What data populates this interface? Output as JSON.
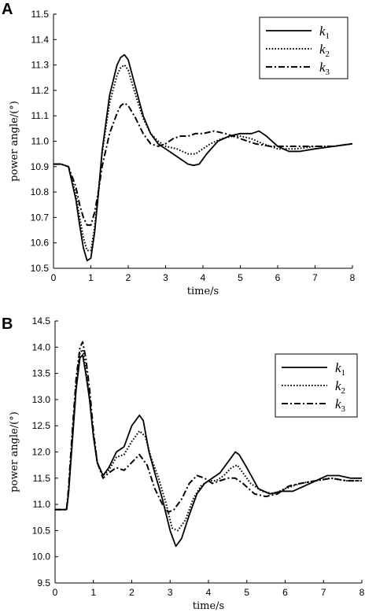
{
  "chart_data": [
    {
      "panel_label": "A",
      "type": "line",
      "xlabel": "time/s",
      "ylabel": "power angle/(°)",
      "xlim": [
        0,
        8
      ],
      "ylim": [
        10.5,
        11.5
      ],
      "x_ticks": [
        0,
        1,
        2,
        3,
        4,
        5,
        6,
        7,
        8
      ],
      "y_ticks": [
        10.5,
        10.6,
        10.7,
        10.8,
        10.9,
        11.0,
        11.1,
        11.2,
        11.3,
        11.4,
        11.5
      ],
      "y_tick_decimals": 1,
      "grid": false,
      "legend_position": "top-right",
      "series": [
        {
          "name": "k",
          "sub": "1",
          "dash": "solid",
          "x": [
            0,
            0.2,
            0.4,
            0.6,
            0.7,
            0.8,
            0.9,
            1.0,
            1.1,
            1.2,
            1.3,
            1.5,
            1.7,
            1.8,
            1.9,
            2.0,
            2.2,
            2.4,
            2.6,
            2.8,
            3.0,
            3.2,
            3.4,
            3.6,
            3.75,
            3.9,
            4.1,
            4.4,
            4.7,
            5.0,
            5.3,
            5.5,
            5.7,
            6.0,
            6.3,
            6.6,
            7.0,
            7.5,
            8.0
          ],
          "y": [
            10.91,
            10.91,
            10.9,
            10.77,
            10.67,
            10.58,
            10.53,
            10.54,
            10.64,
            10.79,
            10.96,
            11.18,
            11.3,
            11.33,
            11.34,
            11.32,
            11.21,
            11.1,
            11.03,
            10.99,
            10.97,
            10.95,
            10.93,
            10.91,
            10.905,
            10.91,
            10.95,
            11.0,
            11.02,
            11.03,
            11.03,
            11.04,
            11.02,
            10.98,
            10.96,
            10.96,
            10.97,
            10.98,
            10.99
          ]
        },
        {
          "name": "k",
          "sub": "2",
          "dash": "dotted",
          "x": [
            0,
            0.2,
            0.4,
            0.6,
            0.7,
            0.8,
            0.9,
            1.0,
            1.1,
            1.2,
            1.3,
            1.5,
            1.7,
            1.8,
            1.9,
            2.0,
            2.2,
            2.4,
            2.6,
            2.8,
            3.0,
            3.3,
            3.6,
            3.8,
            4.0,
            4.2,
            4.5,
            4.8,
            5.0,
            5.3,
            5.6,
            6.0,
            6.5,
            7.0,
            7.5,
            8.0
          ],
          "y": [
            10.91,
            10.91,
            10.9,
            10.79,
            10.7,
            10.62,
            10.57,
            10.57,
            10.66,
            10.8,
            10.95,
            11.15,
            11.26,
            11.29,
            11.3,
            11.28,
            11.18,
            11.09,
            11.03,
            11.0,
            10.98,
            10.97,
            10.95,
            10.95,
            10.97,
            10.99,
            11.01,
            11.02,
            11.02,
            11.01,
            10.99,
            10.97,
            10.97,
            10.98,
            10.98,
            10.99
          ]
        },
        {
          "name": "k",
          "sub": "3",
          "dash": "dashdot",
          "x": [
            0,
            0.2,
            0.4,
            0.6,
            0.7,
            0.8,
            0.9,
            1.0,
            1.1,
            1.2,
            1.3,
            1.5,
            1.7,
            1.8,
            1.9,
            2.0,
            2.2,
            2.4,
            2.6,
            2.8,
            3.0,
            3.2,
            3.4,
            3.6,
            3.8,
            4.0,
            4.3,
            4.6,
            5.0,
            5.4,
            5.8,
            6.2,
            6.6,
            7.0,
            7.5,
            8.0
          ],
          "y": [
            10.91,
            10.91,
            10.9,
            10.82,
            10.75,
            10.7,
            10.67,
            10.67,
            10.72,
            10.8,
            10.9,
            11.03,
            11.11,
            11.14,
            11.15,
            11.14,
            11.09,
            11.03,
            10.99,
            10.98,
            10.99,
            11.01,
            11.02,
            11.02,
            11.03,
            11.03,
            11.04,
            11.03,
            11.01,
            10.99,
            10.98,
            10.98,
            10.98,
            10.98,
            10.98,
            10.99
          ]
        }
      ]
    },
    {
      "panel_label": "B",
      "type": "line",
      "xlabel": "time/s",
      "ylabel": "power angle/(°)",
      "xlim": [
        0,
        8
      ],
      "ylim": [
        9.5,
        14.5
      ],
      "x_ticks": [
        0,
        1,
        2,
        3,
        4,
        5,
        6,
        7,
        8
      ],
      "y_ticks": [
        9.5,
        10.0,
        10.5,
        11.0,
        11.5,
        12.0,
        12.5,
        13.0,
        13.5,
        14.0,
        14.5
      ],
      "y_tick_decimals": 1,
      "grid": false,
      "legend_position": "top-right",
      "series": [
        {
          "name": "k",
          "sub": "1",
          "dash": "solid",
          "x": [
            0,
            0.3,
            0.35,
            0.45,
            0.55,
            0.65,
            0.72,
            0.8,
            0.9,
            1.0,
            1.1,
            1.25,
            1.4,
            1.6,
            1.8,
            2.0,
            2.2,
            2.3,
            2.45,
            2.6,
            2.8,
            3.0,
            3.15,
            3.3,
            3.5,
            3.7,
            3.9,
            4.1,
            4.3,
            4.5,
            4.7,
            4.8,
            5.0,
            5.3,
            5.6,
            5.9,
            6.2,
            6.5,
            6.8,
            7.1,
            7.4,
            7.7,
            8.0
          ],
          "y": [
            10.9,
            10.9,
            11.2,
            12.2,
            13.2,
            13.8,
            13.85,
            13.5,
            13.0,
            12.3,
            11.8,
            11.55,
            11.7,
            12.0,
            12.1,
            12.5,
            12.7,
            12.6,
            12.0,
            11.6,
            11.1,
            10.5,
            10.2,
            10.35,
            10.8,
            11.2,
            11.4,
            11.5,
            11.6,
            11.8,
            12.0,
            11.95,
            11.7,
            11.3,
            11.2,
            11.25,
            11.25,
            11.35,
            11.45,
            11.55,
            11.55,
            11.5,
            11.5
          ]
        },
        {
          "name": "k",
          "sub": "2",
          "dash": "dotted",
          "x": [
            0,
            0.3,
            0.35,
            0.45,
            0.55,
            0.65,
            0.72,
            0.8,
            0.9,
            1.0,
            1.1,
            1.25,
            1.4,
            1.6,
            1.8,
            2.0,
            2.2,
            2.35,
            2.5,
            2.7,
            2.9,
            3.05,
            3.2,
            3.4,
            3.6,
            3.8,
            4.0,
            4.2,
            4.4,
            4.6,
            4.75,
            4.9,
            5.1,
            5.4,
            5.7,
            6.0,
            6.4,
            6.8,
            7.2,
            7.6,
            8.0
          ],
          "y": [
            10.9,
            10.9,
            11.2,
            12.3,
            13.3,
            13.9,
            13.95,
            13.6,
            13.0,
            12.3,
            11.8,
            11.55,
            11.65,
            11.9,
            11.95,
            12.2,
            12.4,
            12.3,
            11.9,
            11.5,
            11.0,
            10.55,
            10.5,
            10.7,
            11.1,
            11.35,
            11.45,
            11.45,
            11.55,
            11.7,
            11.75,
            11.6,
            11.4,
            11.25,
            11.2,
            11.3,
            11.4,
            11.45,
            11.5,
            11.45,
            11.45
          ]
        },
        {
          "name": "k",
          "sub": "3",
          "dash": "dashdot",
          "x": [
            0,
            0.3,
            0.35,
            0.45,
            0.55,
            0.65,
            0.72,
            0.8,
            0.9,
            1.0,
            1.1,
            1.25,
            1.4,
            1.6,
            1.8,
            2.0,
            2.2,
            2.4,
            2.6,
            2.8,
            2.95,
            3.1,
            3.3,
            3.5,
            3.7,
            3.9,
            4.1,
            4.3,
            4.5,
            4.7,
            4.9,
            5.2,
            5.5,
            5.8,
            6.1,
            6.4,
            6.8,
            7.2,
            7.6,
            8.0
          ],
          "y": [
            10.9,
            10.9,
            11.3,
            12.4,
            13.4,
            14.0,
            14.1,
            13.8,
            13.2,
            12.4,
            11.8,
            11.5,
            11.6,
            11.7,
            11.65,
            11.8,
            11.95,
            11.75,
            11.3,
            11.0,
            10.85,
            10.9,
            11.1,
            11.4,
            11.55,
            11.5,
            11.4,
            11.45,
            11.5,
            11.5,
            11.4,
            11.2,
            11.15,
            11.2,
            11.35,
            11.4,
            11.45,
            11.5,
            11.45,
            11.45
          ]
        }
      ]
    }
  ]
}
